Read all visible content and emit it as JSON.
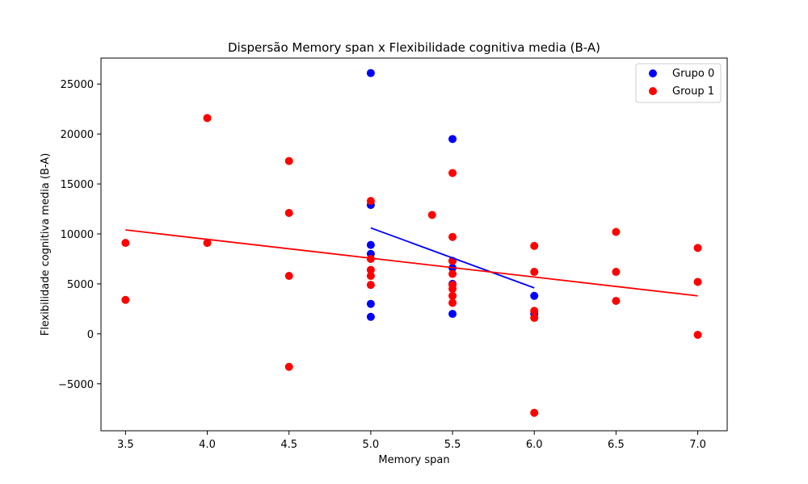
{
  "chart_data": {
    "type": "scatter",
    "title": "Dispersão Memory span x Flexibilidade cognitiva media (B-A)",
    "xlabel": "Memory span",
    "ylabel": "Flexibilidade cognitiva media (B-A)",
    "xlim": [
      3.35,
      7.18
    ],
    "ylim": [
      -9700,
      27600
    ],
    "x_ticks": [
      3.5,
      4.0,
      4.5,
      5.0,
      5.5,
      6.0,
      6.5,
      7.0
    ],
    "x_tick_labels": [
      "3.5",
      "4.0",
      "4.5",
      "5.0",
      "5.5",
      "6.0",
      "6.5",
      "7.0"
    ],
    "y_ticks": [
      -5000,
      0,
      5000,
      10000,
      15000,
      20000,
      25000
    ],
    "y_tick_labels": [
      "−5000",
      "0",
      "5000",
      "10000",
      "15000",
      "20000",
      "25000"
    ],
    "grid": false,
    "legend": {
      "placement": "top-right"
    },
    "series": [
      {
        "name": "Grupo 0",
        "color": "#0000ff",
        "points": [
          [
            5.0,
            26100
          ],
          [
            5.0,
            12900
          ],
          [
            5.0,
            8900
          ],
          [
            5.0,
            8000
          ],
          [
            5.0,
            3000
          ],
          [
            5.0,
            1700
          ],
          [
            5.5,
            19500
          ],
          [
            5.5,
            7300
          ],
          [
            5.5,
            6600
          ],
          [
            5.5,
            5000
          ],
          [
            5.5,
            2000
          ],
          [
            6.0,
            3800
          ],
          [
            6.0,
            2000
          ]
        ],
        "fit": {
          "x": [
            5.0,
            6.0
          ],
          "y": [
            10600,
            4600
          ]
        }
      },
      {
        "name": "Group 1",
        "color": "#ff0000",
        "points": [
          [
            3.5,
            9100
          ],
          [
            3.5,
            3400
          ],
          [
            4.0,
            21600
          ],
          [
            4.0,
            9100
          ],
          [
            4.5,
            17300
          ],
          [
            4.5,
            12100
          ],
          [
            4.5,
            5800
          ],
          [
            4.5,
            -3300
          ],
          [
            5.0,
            13300
          ],
          [
            5.0,
            7500
          ],
          [
            5.0,
            6400
          ],
          [
            5.0,
            5800
          ],
          [
            5.0,
            4900
          ],
          [
            5.375,
            11900
          ],
          [
            5.5,
            16100
          ],
          [
            5.5,
            9700
          ],
          [
            5.5,
            7300
          ],
          [
            5.5,
            6000
          ],
          [
            5.5,
            4900
          ],
          [
            5.5,
            4500
          ],
          [
            5.5,
            3800
          ],
          [
            5.5,
            3100
          ],
          [
            6.0,
            8800
          ],
          [
            6.0,
            6200
          ],
          [
            6.0,
            2300
          ],
          [
            6.0,
            1600
          ],
          [
            6.0,
            -7900
          ],
          [
            6.5,
            10200
          ],
          [
            6.5,
            6200
          ],
          [
            6.5,
            3300
          ],
          [
            7.0,
            8600
          ],
          [
            7.0,
            5200
          ],
          [
            7.0,
            -100
          ]
        ],
        "fit": {
          "x": [
            3.5,
            7.0
          ],
          "y": [
            10400,
            3800
          ]
        }
      }
    ]
  }
}
